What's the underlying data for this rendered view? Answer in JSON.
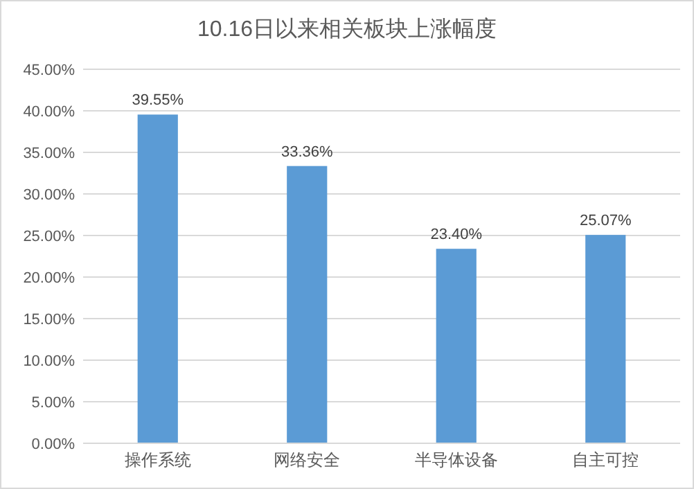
{
  "chart_data": {
    "type": "bar",
    "title": "10.16日以来相关板块上涨幅度",
    "categories": [
      "操作系统",
      "网络安全",
      "半导体设备",
      "自主可控"
    ],
    "values": [
      39.55,
      33.36,
      23.4,
      25.07
    ],
    "value_labels": [
      "39.55%",
      "33.36%",
      "23.40%",
      "25.07%"
    ],
    "color": "#5b9bd5",
    "ylim": [
      0,
      45
    ],
    "yticks": [
      {
        "value": 0,
        "label": "0.00%"
      },
      {
        "value": 5,
        "label": "5.00%"
      },
      {
        "value": 10,
        "label": "10.00%"
      },
      {
        "value": 15,
        "label": "15.00%"
      },
      {
        "value": 20,
        "label": "20.00%"
      },
      {
        "value": 25,
        "label": "25.00%"
      },
      {
        "value": 30,
        "label": "30.00%"
      },
      {
        "value": 35,
        "label": "35.00%"
      },
      {
        "value": 40,
        "label": "40.00%"
      },
      {
        "value": 45,
        "label": "45.00%"
      }
    ],
    "grid": true
  }
}
